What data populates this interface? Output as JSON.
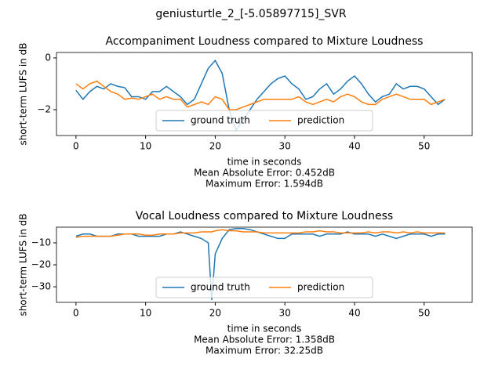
{
  "title": "geniusturtle_2_[-5.05897715]_SVR",
  "chart_data": [
    {
      "type": "line",
      "title": "Accompaniment Loudness compared to Mixture Loudness",
      "x_label": "time in seconds",
      "y_label": "short-term LUFS in dB",
      "annotations": [
        "Mean Absolute Error: 0.452dB",
        "Maximum Error: 1.594dB"
      ],
      "x": [
        0,
        1,
        2,
        3,
        4,
        5,
        6,
        7,
        8,
        9,
        10,
        11,
        12,
        13,
        14,
        15,
        16,
        17,
        18,
        19,
        20,
        21,
        22,
        23,
        24,
        25,
        26,
        27,
        28,
        29,
        30,
        31,
        32,
        33,
        34,
        35,
        36,
        37,
        38,
        39,
        40,
        41,
        42,
        43,
        44,
        45,
        46,
        47,
        48,
        49,
        50,
        51,
        52,
        53
      ],
      "series": [
        {
          "name": "ground truth",
          "color": "#1f77b4",
          "values": [
            -1.25,
            -1.6,
            -1.3,
            -1.1,
            -1.2,
            -1.0,
            -1.1,
            -1.15,
            -1.5,
            -1.5,
            -1.6,
            -1.3,
            -1.3,
            -1.1,
            -1.3,
            -1.5,
            -1.8,
            -1.6,
            -1.0,
            -0.4,
            -0.1,
            -0.6,
            -2.0,
            -2.8,
            -2.4,
            -2.0,
            -1.6,
            -1.3,
            -1.0,
            -0.8,
            -0.7,
            -1.0,
            -1.2,
            -1.6,
            -1.5,
            -1.2,
            -1.0,
            -1.4,
            -1.2,
            -0.9,
            -0.7,
            -1.0,
            -1.4,
            -1.7,
            -1.5,
            -1.4,
            -1.0,
            -1.2,
            -1.1,
            -1.1,
            -1.2,
            -1.5,
            -1.8,
            -1.6
          ]
        },
        {
          "name": "prediction",
          "color": "#ff7f0e",
          "values": [
            -1.0,
            -1.2,
            -1.0,
            -0.9,
            -1.1,
            -1.3,
            -1.4,
            -1.6,
            -1.55,
            -1.6,
            -1.5,
            -1.4,
            -1.6,
            -1.5,
            -1.6,
            -1.6,
            -1.9,
            -1.8,
            -1.7,
            -1.8,
            -1.5,
            -1.6,
            -2.0,
            -2.0,
            -1.9,
            -1.8,
            -1.7,
            -1.6,
            -1.6,
            -1.6,
            -1.6,
            -1.6,
            -1.5,
            -1.7,
            -1.8,
            -1.7,
            -1.6,
            -1.7,
            -1.5,
            -1.4,
            -1.5,
            -1.7,
            -1.8,
            -1.8,
            -1.6,
            -1.5,
            -1.4,
            -1.5,
            -1.6,
            -1.6,
            -1.6,
            -1.8,
            -1.7,
            -1.6
          ]
        }
      ],
      "xlim": [
        -2.8,
        56.9
      ],
      "xticks": [
        0,
        10,
        20,
        30,
        40,
        50
      ],
      "ylim": [
        -3.0,
        0.21
      ],
      "yticks": [
        0,
        {
          "value": -2,
          "label": "−2"
        }
      ],
      "legend": "lower center"
    },
    {
      "type": "line",
      "title": "Vocal Loudness compared to Mixture Loudness",
      "x_label": "time in seconds",
      "y_label": "short-term LUFS in dB",
      "annotations": [
        "Mean Absolute Error: 1.358dB",
        "Maximum Error: 32.25dB"
      ],
      "x": [
        0,
        1,
        2,
        3,
        4,
        5,
        6,
        7,
        8,
        9,
        10,
        11,
        12,
        13,
        14,
        15,
        16,
        17,
        18,
        19,
        19.5,
        20,
        21,
        22,
        23,
        24,
        25,
        26,
        27,
        28,
        29,
        30,
        31,
        32,
        33,
        34,
        35,
        36,
        37,
        38,
        39,
        40,
        41,
        42,
        43,
        44,
        45,
        46,
        47,
        48,
        49,
        50,
        51,
        52,
        53
      ],
      "series": [
        {
          "name": "ground truth",
          "color": "#1f77b4",
          "values": [
            -7,
            -6,
            -6,
            -7,
            -7,
            -7,
            -6,
            -6,
            -6,
            -7,
            -7,
            -7,
            -7,
            -6,
            -6,
            -5,
            -6,
            -7,
            -8,
            -10,
            -36,
            -15,
            -8,
            -4,
            -3.5,
            -3.5,
            -4,
            -5,
            -6,
            -7,
            -8,
            -8,
            -6,
            -6,
            -6,
            -6,
            -7,
            -6,
            -6,
            -6,
            -5,
            -6,
            -6,
            -6,
            -7,
            -6,
            -7,
            -8,
            -7,
            -6,
            -6,
            -6,
            -7,
            -6,
            -6
          ]
        },
        {
          "name": "prediction",
          "color": "#ff7f0e",
          "values": [
            -7.5,
            -7,
            -7,
            -7,
            -7,
            -7,
            -6.5,
            -6,
            -6,
            -6,
            -6.5,
            -6.5,
            -6,
            -6,
            -6,
            -5.5,
            -5.5,
            -5.5,
            -5,
            -5,
            -5,
            -4.5,
            -4,
            -4.5,
            -4.5,
            -5,
            -5,
            -5,
            -5.5,
            -5.5,
            -5.5,
            -5.5,
            -5.5,
            -5.5,
            -5,
            -5,
            -4.5,
            -5,
            -5,
            -5.5,
            -5.5,
            -5.5,
            -5.5,
            -5,
            -5.5,
            -5,
            -5,
            -5.5,
            -5,
            -5.5,
            -5,
            -5.5,
            -5.5,
            -5.5,
            -5.5
          ]
        }
      ],
      "xlim": [
        -2.8,
        56.9
      ],
      "xticks": [
        0,
        10,
        20,
        30,
        40,
        50
      ],
      "ylim": [
        -37.1,
        -2.86
      ],
      "yticks": [
        {
          "value": -10,
          "label": "−10"
        },
        {
          "value": -20,
          "label": "−20"
        },
        {
          "value": -30,
          "label": "−30"
        }
      ],
      "legend": "lower center"
    }
  ]
}
